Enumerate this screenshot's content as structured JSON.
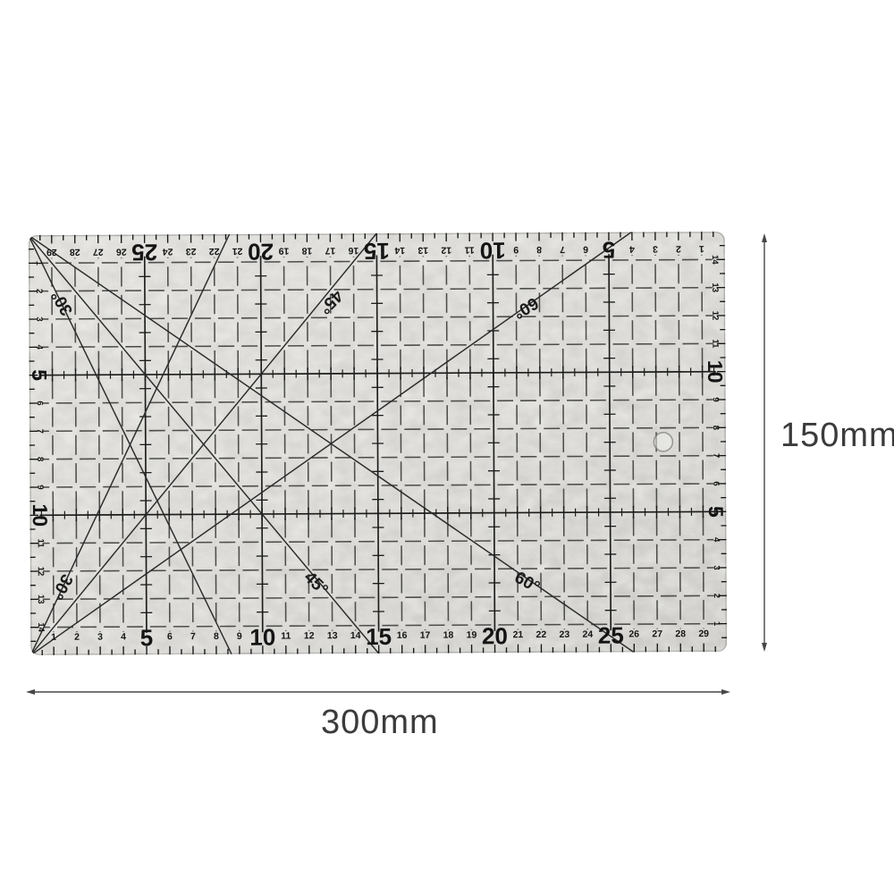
{
  "dimensions": {
    "width_label": "300mm",
    "height_label": "150mm"
  },
  "ruler": {
    "width_cm": 30,
    "height_cm": 15,
    "emphasized_multiple": 5,
    "top_scale_numbers": [
      1,
      2,
      3,
      4,
      5,
      6,
      7,
      8,
      9,
      10,
      11,
      12,
      13,
      14,
      15,
      16,
      17,
      18,
      19,
      20,
      21,
      22,
      23,
      24,
      25,
      26,
      27,
      28,
      29
    ],
    "bottom_scale_numbers": [
      1,
      2,
      3,
      4,
      5,
      6,
      7,
      8,
      9,
      10,
      11,
      12,
      13,
      14,
      15,
      16,
      17,
      18,
      19,
      20,
      21,
      22,
      23,
      24,
      25,
      26,
      27,
      28,
      29
    ],
    "left_scale_numbers": [
      1,
      2,
      3,
      4,
      5,
      6,
      7,
      8,
      9,
      10,
      11,
      12,
      13,
      14
    ],
    "right_scale_numbers": [
      1,
      2,
      3,
      4,
      5,
      6,
      7,
      8,
      9,
      10,
      11,
      12,
      13,
      14
    ],
    "diagonal_lines": [
      {
        "origin": "top-left",
        "angle_from_vertical_deg": 30
      },
      {
        "origin": "top-left",
        "angle_from_vertical_deg": 45
      },
      {
        "origin": "top-left",
        "angle_from_vertical_deg": 60
      },
      {
        "origin": "bottom-left",
        "angle_from_vertical_deg": 30
      },
      {
        "origin": "bottom-left",
        "angle_from_vertical_deg": 45
      },
      {
        "origin": "bottom-left",
        "angle_from_vertical_deg": 60
      }
    ],
    "angle_labels": [
      {
        "text": "30°",
        "x_cm": 1.45,
        "y_cm": 2.42,
        "rotation": 240
      },
      {
        "text": "45°",
        "x_cm": 13.0,
        "y_cm": 2.43,
        "rotation": 135
      },
      {
        "text": "60°",
        "x_cm": 21.4,
        "y_cm": 2.68,
        "rotation": 150
      },
      {
        "text": "30°",
        "x_cm": 1.35,
        "y_cm": 12.55,
        "rotation": 120
      },
      {
        "text": "45°",
        "x_cm": 12.3,
        "y_cm": 12.5,
        "rotation": 45
      },
      {
        "text": "60°",
        "x_cm": 21.4,
        "y_cm": 12.5,
        "rotation": 30
      }
    ],
    "hole": {
      "x_cm": 27.3,
      "y_cm": 7.5
    },
    "colors": {
      "body": "#d5d4d0",
      "markings": "#1c1c1c",
      "grid": "#3a3a3a",
      "dimension": "#474747"
    }
  }
}
